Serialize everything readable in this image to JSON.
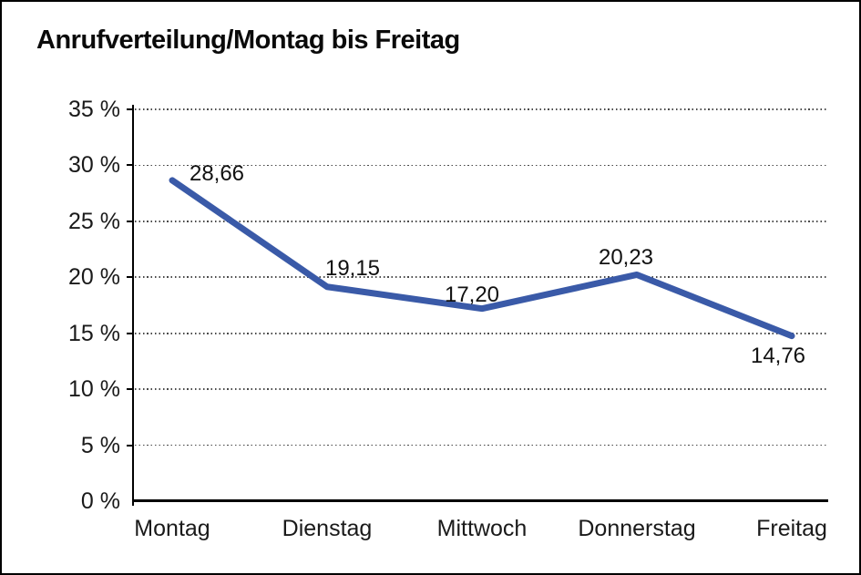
{
  "frame": {
    "background": "#ffffff",
    "border_color": "#000000"
  },
  "chart_data": {
    "type": "line",
    "title": "Anrufverteilung/Montag bis Freitag",
    "categories": [
      "Montag",
      "Dienstag",
      "Mittwoch",
      "Donnerstag",
      "Freitag"
    ],
    "values": [
      28.66,
      19.15,
      17.2,
      20.23,
      14.76
    ],
    "value_labels": [
      "28,66",
      "19,15",
      "17,20",
      "20,23",
      "14,76"
    ],
    "xlabel": "",
    "ylabel": "",
    "ylim": [
      0,
      35
    ],
    "ytick_step": 5,
    "ytick_labels": [
      "0 %",
      "5 %",
      "10 %",
      "15 %",
      "20 %",
      "25 %",
      "30 %",
      "35 %"
    ],
    "grid": "horizontal-dotted",
    "legend": "none",
    "line_color": "#3A5AA8",
    "axis_color": "#000000",
    "text_color": "#1a1a1a"
  }
}
